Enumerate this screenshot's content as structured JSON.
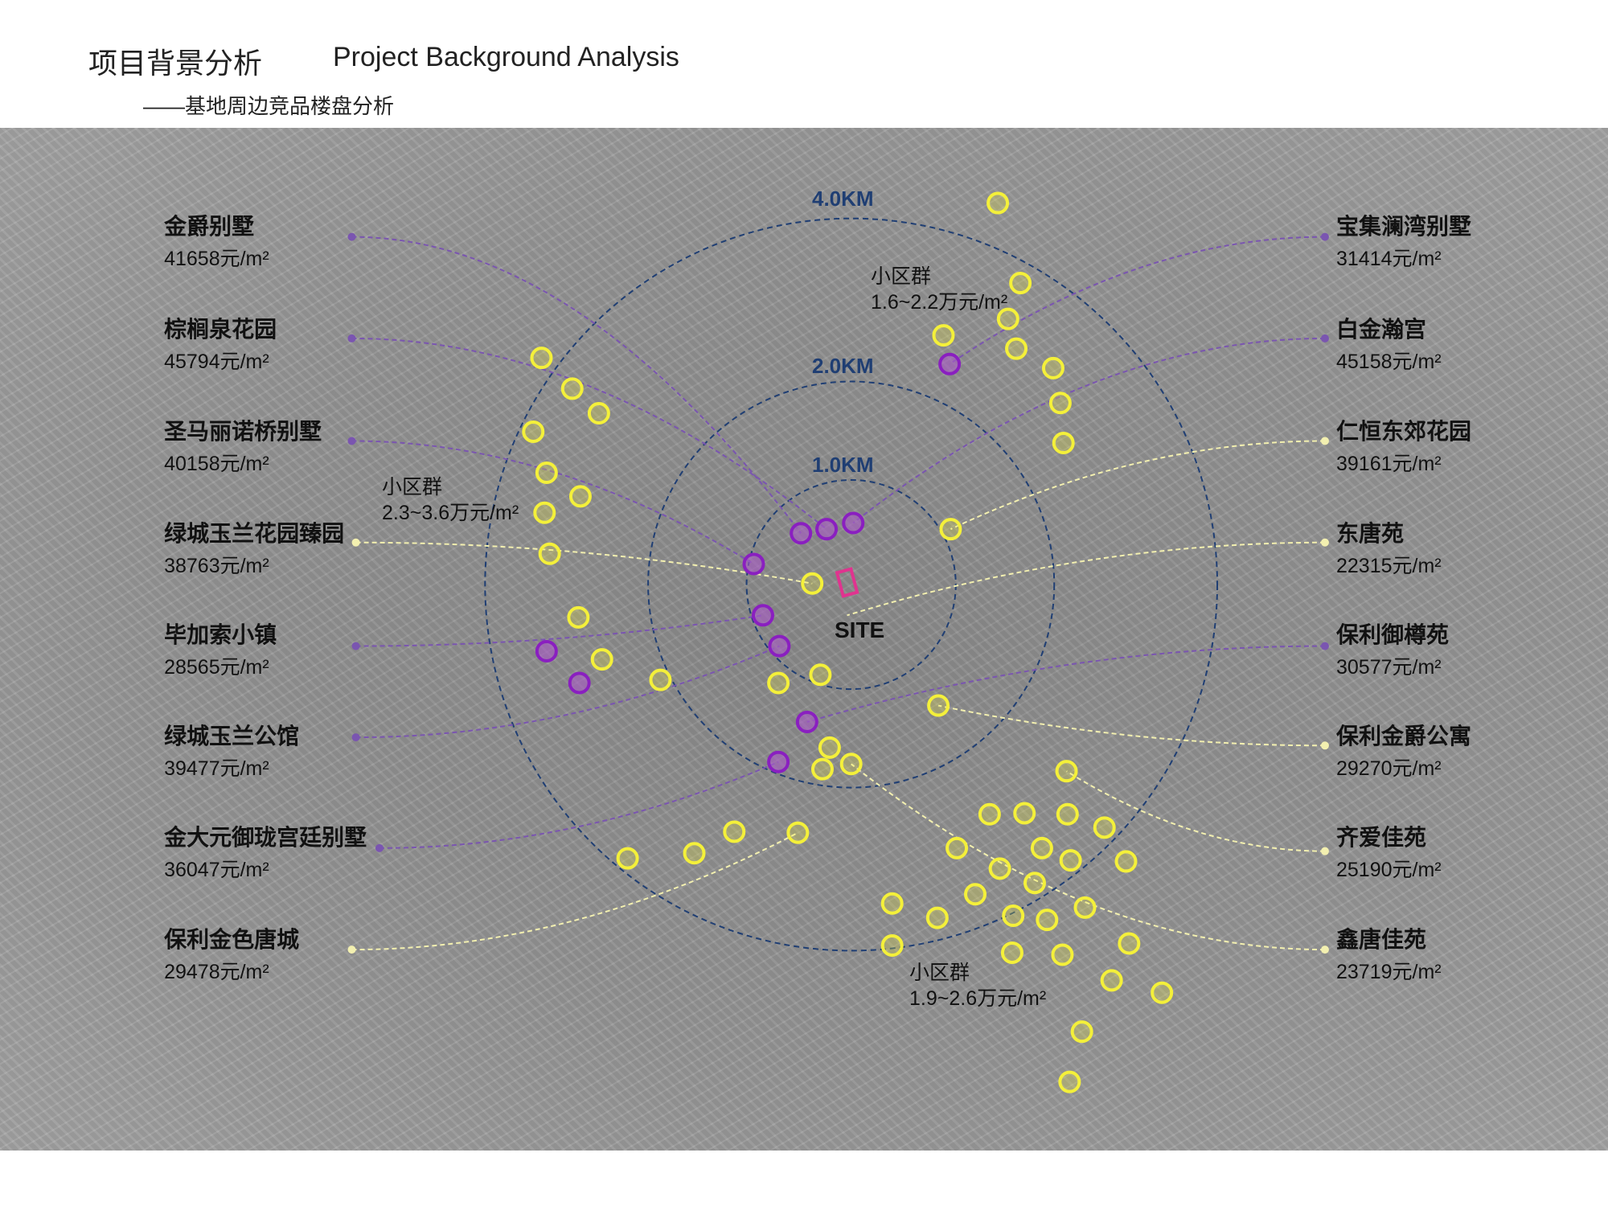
{
  "header": {
    "title_cn": "项目背景分析",
    "title_en": "Project Background Analysis",
    "subtitle": "——基地周边竞品楼盘分析"
  },
  "rings": [
    {
      "label": "1.0KM"
    },
    {
      "label": "2.0KM"
    },
    {
      "label": "4.0KM"
    }
  ],
  "site_label": "SITE",
  "clusters": [
    {
      "title": "小区群",
      "range": "1.6~2.2万元/m²"
    },
    {
      "title": "小区群",
      "range": "2.3~3.6万元/m²"
    },
    {
      "title": "小区群",
      "range": "1.9~2.6万元/m²"
    }
  ],
  "left": [
    {
      "name": "金爵别墅",
      "price": "41658元/m²",
      "type": "villa"
    },
    {
      "name": "棕榈泉花园",
      "price": "45794元/m²",
      "type": "villa"
    },
    {
      "name": "圣马丽诺桥别墅",
      "price": "40158元/m²",
      "type": "villa"
    },
    {
      "name": "绿城玉兰花园臻园",
      "price": "38763元/m²",
      "type": "residential"
    },
    {
      "name": "毕加索小镇",
      "price": "28565元/m²",
      "type": "villa"
    },
    {
      "name": "绿城玉兰公馆",
      "price": "39477元/m²",
      "type": "villa"
    },
    {
      "name": "金大元御珑宫廷别墅",
      "price": "36047元/m²",
      "type": "villa"
    },
    {
      "name": "保利金色唐城",
      "price": "29478元/m²",
      "type": "residential"
    }
  ],
  "right": [
    {
      "name": "宝集澜湾别墅",
      "price": "31414元/m²",
      "type": "villa"
    },
    {
      "name": "白金瀚宫",
      "price": "45158元/m²",
      "type": "villa"
    },
    {
      "name": "仁恒东郊花园",
      "price": "39161元/m²",
      "type": "residential"
    },
    {
      "name": "东唐苑",
      "price": "22315元/m²",
      "type": "residential"
    },
    {
      "name": "保利御樽苑",
      "price": "30577元/m²",
      "type": "villa"
    },
    {
      "name": "保利金爵公寓",
      "price": "29270元/m²",
      "type": "residential"
    },
    {
      "name": "齐爱佳苑",
      "price": "25190元/m²",
      "type": "residential"
    },
    {
      "name": "鑫唐佳苑",
      "price": "23719元/m²",
      "type": "residential"
    }
  ],
  "colors": {
    "villa": "#8a1fc0",
    "residential": "#f4f03a",
    "ring": "#1f3e73",
    "site": "#e0338f",
    "villa_line": "#7a55b0",
    "residential_line": "#f3f0b0"
  }
}
